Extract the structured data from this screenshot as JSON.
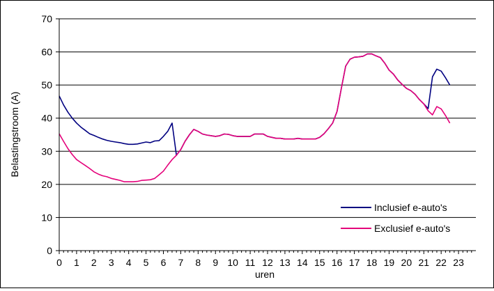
{
  "chart_data": {
    "type": "line",
    "title": "",
    "xlabel": "uren",
    "ylabel": "Belastingstroom (A)",
    "xlim": [
      0,
      24
    ],
    "ylim": [
      0,
      70
    ],
    "yticks": [
      0,
      10,
      20,
      30,
      40,
      50,
      60,
      70
    ],
    "xticks": [
      0,
      1,
      2,
      3,
      4,
      5,
      6,
      7,
      8,
      9,
      10,
      11,
      12,
      13,
      14,
      15,
      16,
      17,
      18,
      19,
      20,
      21,
      22,
      23
    ],
    "grid": "horizontal",
    "legend_position": "bottom-right",
    "series": [
      {
        "name": "Inclusief e-auto's",
        "color": "#000080",
        "points": [
          [
            0,
            46.7
          ],
          [
            0.25,
            44.0
          ],
          [
            0.5,
            41.8
          ],
          [
            0.75,
            40.0
          ],
          [
            1,
            38.5
          ],
          [
            1.25,
            37.3
          ],
          [
            1.5,
            36.3
          ],
          [
            1.75,
            35.3
          ],
          [
            2,
            34.8
          ],
          [
            2.25,
            34.2
          ],
          [
            2.5,
            33.7
          ],
          [
            2.75,
            33.3
          ],
          [
            3,
            33.0
          ],
          [
            3.25,
            32.8
          ],
          [
            3.5,
            32.6
          ],
          [
            3.75,
            32.3
          ],
          [
            4,
            32.1
          ],
          [
            4.25,
            32.1
          ],
          [
            4.5,
            32.2
          ],
          [
            4.75,
            32.5
          ],
          [
            5,
            32.8
          ],
          [
            5.25,
            32.6
          ],
          [
            5.5,
            33.1
          ],
          [
            5.75,
            33.2
          ],
          [
            6,
            34.5
          ],
          [
            6.25,
            36.0
          ],
          [
            6.5,
            38.5
          ],
          [
            6.75,
            28.8
          ],
          [
            7,
            30.5
          ],
          [
            7.25,
            33.0
          ],
          [
            7.5,
            35.0
          ],
          [
            7.75,
            36.6
          ],
          [
            8,
            36.0
          ],
          [
            8.25,
            35.2
          ],
          [
            8.5,
            34.9
          ],
          [
            8.75,
            34.7
          ],
          [
            9,
            34.5
          ],
          [
            9.25,
            34.7
          ],
          [
            9.5,
            35.2
          ],
          [
            9.75,
            35.1
          ],
          [
            10,
            34.7
          ],
          [
            10.25,
            34.5
          ],
          [
            10.5,
            34.5
          ],
          [
            10.75,
            34.5
          ],
          [
            11,
            34.5
          ],
          [
            11.25,
            35.2
          ],
          [
            11.5,
            35.2
          ],
          [
            11.75,
            35.2
          ],
          [
            12,
            34.5
          ],
          [
            12.25,
            34.2
          ],
          [
            12.5,
            33.9
          ],
          [
            12.75,
            33.9
          ],
          [
            13,
            33.7
          ],
          [
            13.25,
            33.7
          ],
          [
            13.5,
            33.7
          ],
          [
            13.75,
            33.9
          ],
          [
            14,
            33.7
          ],
          [
            14.25,
            33.7
          ],
          [
            14.5,
            33.7
          ],
          [
            14.75,
            33.7
          ],
          [
            15,
            34.2
          ],
          [
            15.25,
            35.3
          ],
          [
            15.5,
            36.8
          ],
          [
            15.75,
            38.5
          ],
          [
            16,
            42.0
          ],
          [
            16.25,
            49.0
          ],
          [
            16.5,
            55.7
          ],
          [
            16.75,
            57.8
          ],
          [
            17,
            58.4
          ],
          [
            17.25,
            58.5
          ],
          [
            17.5,
            58.7
          ],
          [
            17.75,
            59.4
          ],
          [
            18,
            59.4
          ],
          [
            18.25,
            58.8
          ],
          [
            18.5,
            58.3
          ],
          [
            18.75,
            56.6
          ],
          [
            19,
            54.5
          ],
          [
            19.25,
            53.3
          ],
          [
            19.5,
            51.5
          ],
          [
            19.75,
            50.2
          ],
          [
            20,
            49.0
          ],
          [
            20.25,
            48.3
          ],
          [
            20.5,
            47.2
          ],
          [
            20.75,
            45.6
          ],
          [
            21,
            44.3
          ],
          [
            21.25,
            42.9
          ],
          [
            21.5,
            52.5
          ],
          [
            21.75,
            54.8
          ],
          [
            22,
            54.2
          ],
          [
            22.25,
            52.2
          ],
          [
            22.5,
            50.0
          ]
        ]
      },
      {
        "name": "Exclusief e-auto's",
        "color": "#e4007a",
        "points": [
          [
            0,
            35.3
          ],
          [
            0.25,
            33.0
          ],
          [
            0.5,
            30.8
          ],
          [
            0.75,
            29.0
          ],
          [
            1,
            27.5
          ],
          [
            1.25,
            26.6
          ],
          [
            1.5,
            25.7
          ],
          [
            1.75,
            24.8
          ],
          [
            2,
            23.8
          ],
          [
            2.25,
            23.1
          ],
          [
            2.5,
            22.6
          ],
          [
            2.75,
            22.3
          ],
          [
            3,
            21.8
          ],
          [
            3.25,
            21.5
          ],
          [
            3.5,
            21.2
          ],
          [
            3.75,
            20.8
          ],
          [
            4,
            20.8
          ],
          [
            4.25,
            20.8
          ],
          [
            4.5,
            20.9
          ],
          [
            4.75,
            21.2
          ],
          [
            5,
            21.3
          ],
          [
            5.25,
            21.4
          ],
          [
            5.5,
            21.8
          ],
          [
            5.75,
            22.9
          ],
          [
            6,
            24.0
          ],
          [
            6.25,
            25.8
          ],
          [
            6.5,
            27.5
          ],
          [
            6.75,
            28.8
          ],
          [
            7,
            30.5
          ],
          [
            7.25,
            33.0
          ],
          [
            7.5,
            35.0
          ],
          [
            7.75,
            36.6
          ],
          [
            8,
            36.0
          ],
          [
            8.25,
            35.2
          ],
          [
            8.5,
            34.9
          ],
          [
            8.75,
            34.7
          ],
          [
            9,
            34.5
          ],
          [
            9.25,
            34.7
          ],
          [
            9.5,
            35.2
          ],
          [
            9.75,
            35.1
          ],
          [
            10,
            34.7
          ],
          [
            10.25,
            34.5
          ],
          [
            10.5,
            34.5
          ],
          [
            10.75,
            34.5
          ],
          [
            11,
            34.5
          ],
          [
            11.25,
            35.2
          ],
          [
            11.5,
            35.2
          ],
          [
            11.75,
            35.2
          ],
          [
            12,
            34.5
          ],
          [
            12.25,
            34.2
          ],
          [
            12.5,
            33.9
          ],
          [
            12.75,
            33.9
          ],
          [
            13,
            33.7
          ],
          [
            13.25,
            33.7
          ],
          [
            13.5,
            33.7
          ],
          [
            13.75,
            33.9
          ],
          [
            14,
            33.7
          ],
          [
            14.25,
            33.7
          ],
          [
            14.5,
            33.7
          ],
          [
            14.75,
            33.7
          ],
          [
            15,
            34.2
          ],
          [
            15.25,
            35.3
          ],
          [
            15.5,
            36.8
          ],
          [
            15.75,
            38.5
          ],
          [
            16,
            42.0
          ],
          [
            16.25,
            49.0
          ],
          [
            16.5,
            55.7
          ],
          [
            16.75,
            57.8
          ],
          [
            17,
            58.4
          ],
          [
            17.25,
            58.5
          ],
          [
            17.5,
            58.7
          ],
          [
            17.75,
            59.4
          ],
          [
            18,
            59.4
          ],
          [
            18.25,
            58.8
          ],
          [
            18.5,
            58.3
          ],
          [
            18.75,
            56.6
          ],
          [
            19,
            54.5
          ],
          [
            19.25,
            53.3
          ],
          [
            19.5,
            51.5
          ],
          [
            19.75,
            50.2
          ],
          [
            20,
            49.0
          ],
          [
            20.25,
            48.3
          ],
          [
            20.5,
            47.2
          ],
          [
            20.75,
            45.6
          ],
          [
            21,
            44.3
          ],
          [
            21.25,
            42.2
          ],
          [
            21.5,
            41.0
          ],
          [
            21.75,
            43.5
          ],
          [
            22,
            42.8
          ],
          [
            22.25,
            40.8
          ],
          [
            22.5,
            38.5
          ]
        ]
      }
    ]
  }
}
